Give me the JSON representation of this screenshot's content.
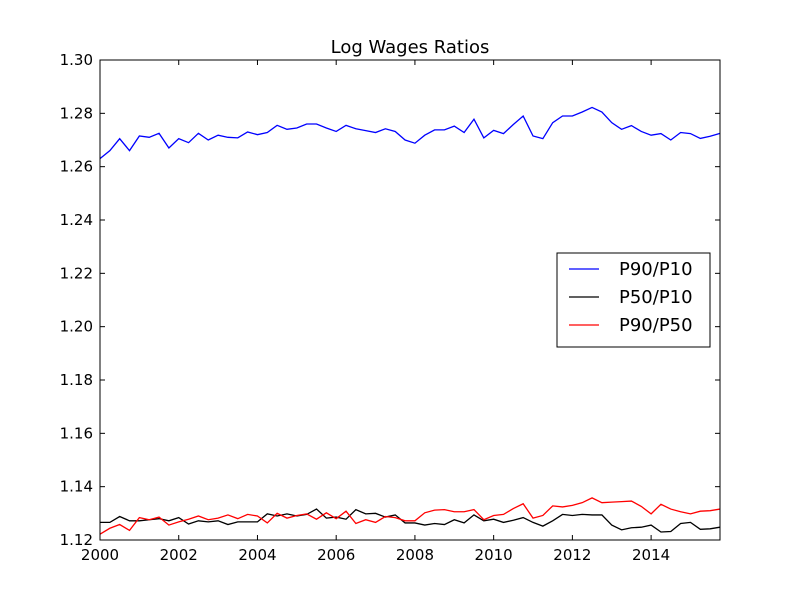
{
  "chart_data": {
    "type": "line",
    "title": "Log Wages Ratios",
    "xlabel": "",
    "ylabel": "",
    "xlim": [
      2000,
      2015.75
    ],
    "ylim": [
      1.12,
      1.3
    ],
    "x_ticks": [
      2000,
      2002,
      2004,
      2006,
      2008,
      2010,
      2012,
      2014
    ],
    "x_tick_labels": [
      "2000",
      "2002",
      "2004",
      "2006",
      "2008",
      "2010",
      "2012",
      "2014"
    ],
    "y_ticks": [
      1.12,
      1.14,
      1.16,
      1.18,
      1.2,
      1.22,
      1.24,
      1.26,
      1.28,
      1.3
    ],
    "y_tick_labels": [
      "1.12",
      "1.14",
      "1.16",
      "1.18",
      "1.20",
      "1.22",
      "1.24",
      "1.26",
      "1.28",
      "1.30"
    ],
    "grid": false,
    "legend_position": "center-right",
    "x_start": 2000,
    "x_step": 0.25,
    "series": [
      {
        "name": "P90/P10",
        "color": "#0000ff",
        "values": [
          1.263,
          1.266,
          1.2705,
          1.266,
          1.2715,
          1.271,
          1.2725,
          1.267,
          1.2705,
          1.269,
          1.2725,
          1.27,
          1.2718,
          1.271,
          1.2708,
          1.273,
          1.272,
          1.2728,
          1.2755,
          1.274,
          1.2745,
          1.276,
          1.276,
          1.2745,
          1.2732,
          1.2755,
          1.2742,
          1.2735,
          1.2728,
          1.2742,
          1.2732,
          1.27,
          1.2688,
          1.2718,
          1.2738,
          1.2738,
          1.2752,
          1.2728,
          1.2778,
          1.2708,
          1.2736,
          1.2724,
          1.2758,
          1.279,
          1.2715,
          1.2705,
          1.2765,
          1.279,
          1.279,
          1.2805,
          1.2822,
          1.2805,
          1.2765,
          1.274,
          1.2754,
          1.2732,
          1.2718,
          1.2724,
          1.27,
          1.2728,
          1.2724,
          1.2706,
          1.2714,
          1.2725
        ]
      },
      {
        "name": "P50/P10",
        "color": "#000000",
        "values": [
          1.1266,
          1.1266,
          1.1288,
          1.1272,
          1.1272,
          1.1276,
          1.128,
          1.1272,
          1.1284,
          1.126,
          1.1272,
          1.1268,
          1.1272,
          1.1258,
          1.1268,
          1.1268,
          1.1268,
          1.1298,
          1.129,
          1.1298,
          1.129,
          1.1296,
          1.1316,
          1.1282,
          1.1286,
          1.1278,
          1.1314,
          1.1298,
          1.13,
          1.1286,
          1.1294,
          1.1264,
          1.1264,
          1.1256,
          1.1262,
          1.1258,
          1.1276,
          1.1264,
          1.1294,
          1.1272,
          1.1278,
          1.1266,
          1.1274,
          1.1284,
          1.1266,
          1.1252,
          1.1272,
          1.1296,
          1.1292,
          1.1296,
          1.1294,
          1.1294,
          1.1256,
          1.1238,
          1.1246,
          1.1248,
          1.1256,
          1.123,
          1.1232,
          1.1262,
          1.1266,
          1.124,
          1.1242,
          1.1248
        ]
      },
      {
        "name": "P90/P50",
        "color": "#ff0000",
        "values": [
          1.1222,
          1.1244,
          1.1258,
          1.1236,
          1.1284,
          1.1276,
          1.1286,
          1.1256,
          1.1268,
          1.1278,
          1.129,
          1.1276,
          1.1282,
          1.1294,
          1.128,
          1.1296,
          1.129,
          1.1264,
          1.13,
          1.1282,
          1.1292,
          1.1298,
          1.1278,
          1.1302,
          1.128,
          1.1308,
          1.1262,
          1.1276,
          1.1266,
          1.1288,
          1.1284,
          1.1272,
          1.1272,
          1.1302,
          1.1312,
          1.1314,
          1.1306,
          1.1306,
          1.1314,
          1.1276,
          1.1292,
          1.1296,
          1.1318,
          1.1336,
          1.1282,
          1.1292,
          1.1328,
          1.1324,
          1.133,
          1.134,
          1.1358,
          1.134,
          1.1342,
          1.1344,
          1.1346,
          1.1326,
          1.1298,
          1.1334,
          1.1316,
          1.1306,
          1.1298,
          1.1308,
          1.131,
          1.1316
        ]
      }
    ]
  }
}
